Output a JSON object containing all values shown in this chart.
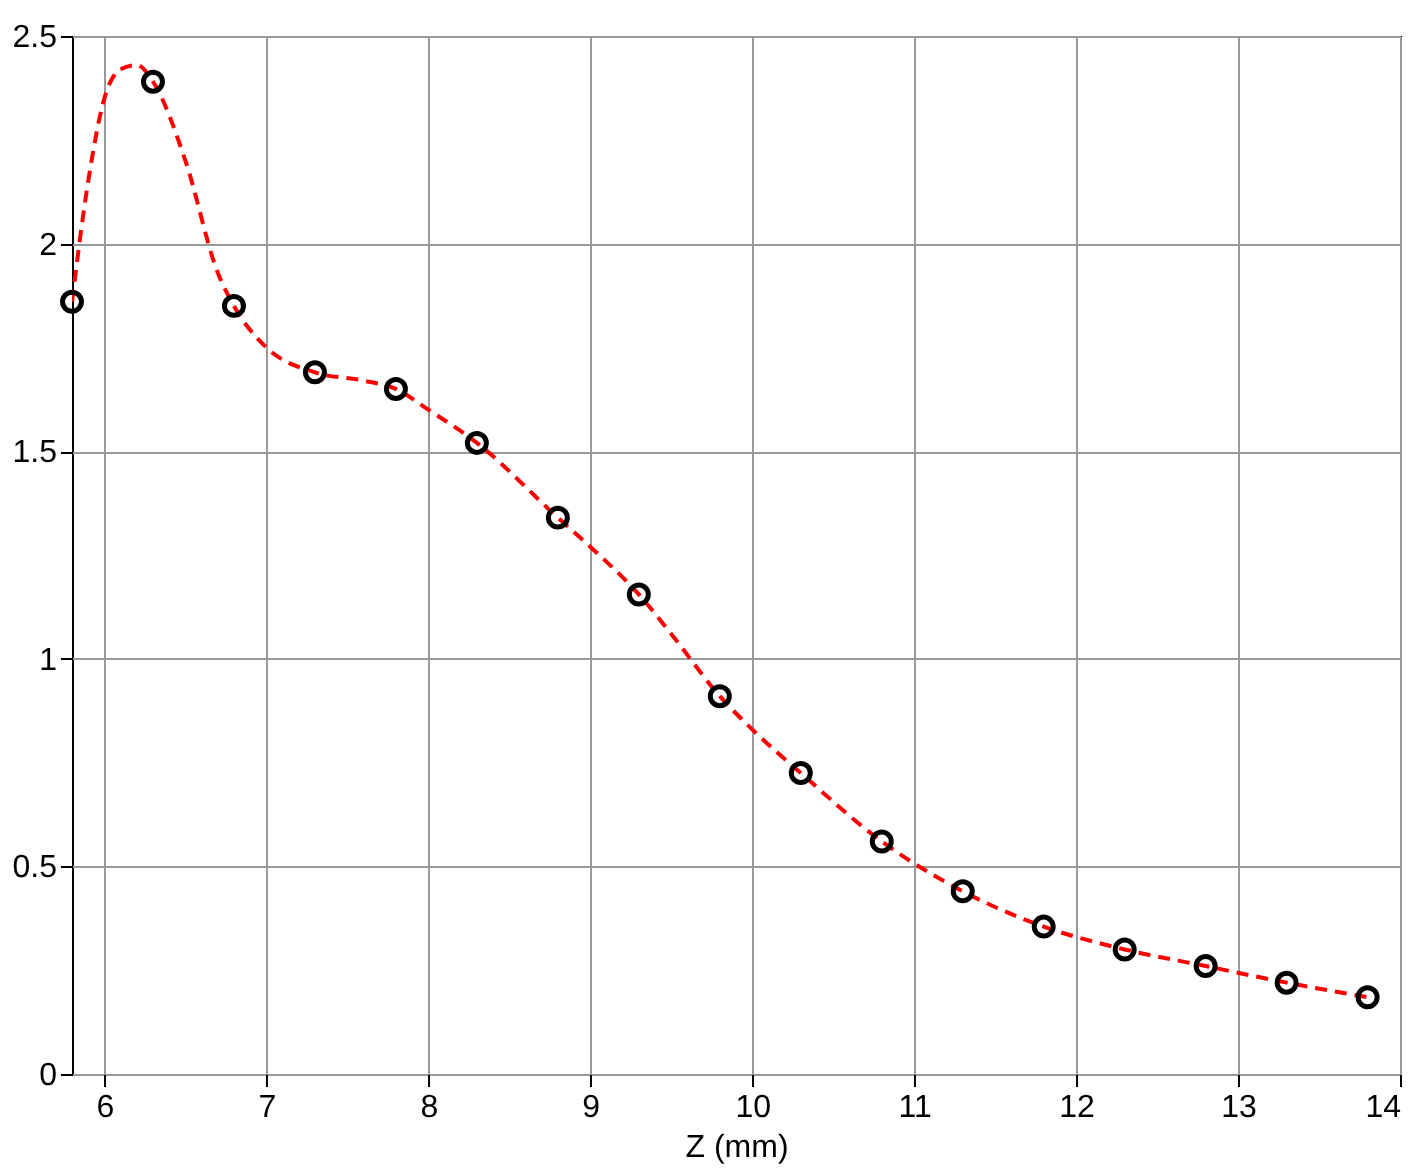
{
  "chart_data": {
    "type": "scatter",
    "xlabel": "Z (mm)",
    "xlim": [
      5.8,
      14
    ],
    "xticks": [
      6,
      7,
      8,
      9,
      10,
      11,
      12,
      13,
      14
    ],
    "ylim": [
      0,
      2.5
    ],
    "yticks": [
      0,
      0.5,
      1,
      1.5,
      2,
      2.5
    ],
    "grid": true,
    "series": [
      {
        "type": "line",
        "color": "#ff0000",
        "line_style": "dashed",
        "marker": "none",
        "x": [
          5.8,
          5.9,
          6.0,
          6.1,
          6.2,
          6.3,
          6.5,
          6.7,
          6.8,
          7.0,
          7.3,
          7.6,
          7.8,
          8.0,
          8.3,
          8.8,
          9.0,
          9.3,
          9.5,
          9.8,
          10.0,
          10.3,
          10.8,
          11.3,
          11.8,
          12.3,
          12.8,
          13.3,
          13.8
        ],
        "values": [
          1.86,
          2.15,
          2.35,
          2.42,
          2.43,
          2.39,
          2.2,
          1.93,
          1.85,
          1.75,
          1.69,
          1.67,
          1.65,
          1.6,
          1.52,
          1.34,
          1.27,
          1.155,
          1.06,
          0.91,
          0.83,
          0.725,
          0.56,
          0.44,
          0.355,
          0.3,
          0.26,
          0.22,
          0.185
        ]
      },
      {
        "color": "#000000",
        "marker": "circle",
        "x": [
          5.8,
          6.3,
          6.8,
          7.3,
          7.8,
          8.3,
          8.8,
          9.3,
          9.8,
          10.3,
          10.8,
          11.3,
          11.8,
          12.3,
          12.8,
          13.3,
          13.8
        ],
        "values": [
          1.86,
          2.39,
          1.85,
          1.69,
          1.65,
          1.52,
          1.34,
          1.155,
          0.91,
          0.725,
          0.56,
          0.44,
          0.355,
          0.3,
          0.26,
          0.22,
          0.185
        ]
      }
    ]
  }
}
